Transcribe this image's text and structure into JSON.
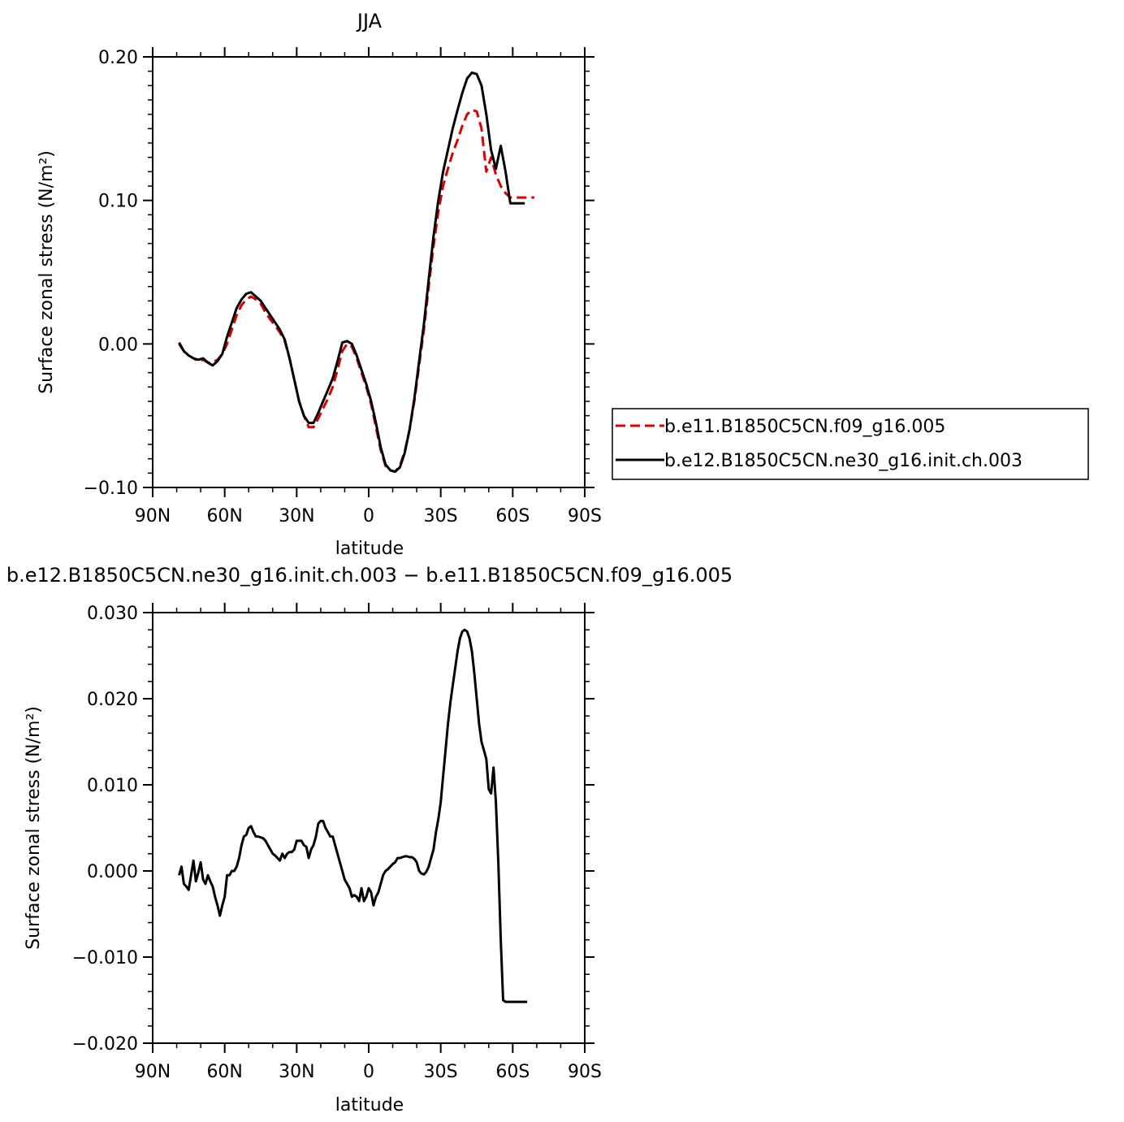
{
  "chart_data": [
    {
      "type": "line",
      "title": "JJA",
      "xlabel": "latitude",
      "ylabel": "Surface zonal stress (N/m²)",
      "xlim": [
        -90,
        90
      ],
      "ylim": [
        -0.1,
        0.2
      ],
      "x_ticks": [
        -90,
        -60,
        -30,
        0,
        30,
        60,
        90
      ],
      "x_tick_labels": [
        "90N",
        "60N",
        "30N",
        "0",
        "30S",
        "60S",
        "90S"
      ],
      "y_ticks": [
        -0.1,
        0.0,
        0.1,
        0.2
      ],
      "y_tick_labels": [
        "−0.10",
        "0.00",
        "0.10",
        "0.20"
      ],
      "legend_position": "right",
      "series": [
        {
          "name": "b.e11.B1850C5CN.f09_g16.005",
          "color": "#dd0000",
          "dash": "dashed",
          "x": [
            -79,
            -77,
            -75,
            -73,
            -71,
            -69,
            -67,
            -65,
            -63,
            -61,
            -59,
            -57,
            -55,
            -53,
            -51,
            -49,
            -47,
            -45,
            -43,
            -41,
            -39,
            -37,
            -35,
            -33,
            -31,
            -29,
            -27,
            -25,
            -23,
            -21,
            -19,
            -17,
            -15,
            -13,
            -11,
            -9,
            -7,
            -5,
            -3,
            -1,
            1,
            3,
            5,
            7,
            9,
            11,
            13,
            15,
            17,
            19,
            21,
            23,
            25,
            27,
            29,
            31,
            33,
            35,
            37,
            39,
            41,
            43,
            45,
            47,
            49,
            51,
            53,
            55,
            57,
            59,
            61,
            63,
            65,
            67,
            69
          ],
          "y": [
            0.0,
            -0.005,
            -0.008,
            -0.01,
            -0.012,
            -0.011,
            -0.013,
            -0.013,
            -0.011,
            -0.007,
            0.0,
            0.01,
            0.02,
            0.027,
            0.031,
            0.033,
            0.031,
            0.028,
            0.022,
            0.017,
            0.013,
            0.008,
            0.002,
            -0.01,
            -0.025,
            -0.04,
            -0.05,
            -0.058,
            -0.058,
            -0.052,
            -0.045,
            -0.038,
            -0.03,
            -0.018,
            -0.005,
            0.0,
            -0.002,
            -0.01,
            -0.02,
            -0.03,
            -0.042,
            -0.058,
            -0.074,
            -0.085,
            -0.088,
            -0.089,
            -0.085,
            -0.075,
            -0.06,
            -0.04,
            -0.015,
            0.01,
            0.04,
            0.068,
            0.092,
            0.11,
            0.122,
            0.133,
            0.142,
            0.152,
            0.16,
            0.163,
            0.162,
            0.15,
            0.12,
            0.13,
            0.118,
            0.11,
            0.105,
            0.102,
            0.102,
            0.102,
            0.102,
            0.102,
            0.102
          ]
        },
        {
          "name": "b.e12.B1850C5CN.ne30_g16.init.ch.003",
          "color": "#000000",
          "dash": "solid",
          "x": [
            -79,
            -77,
            -75,
            -73,
            -71,
            -69,
            -67,
            -65,
            -63,
            -61,
            -59,
            -57,
            -55,
            -53,
            -51,
            -49,
            -47,
            -45,
            -43,
            -41,
            -39,
            -37,
            -35,
            -33,
            -31,
            -29,
            -27,
            -25,
            -23,
            -21,
            -19,
            -17,
            -15,
            -13,
            -11,
            -9,
            -7,
            -5,
            -3,
            -1,
            1,
            3,
            5,
            7,
            9,
            11,
            13,
            15,
            17,
            19,
            21,
            23,
            25,
            27,
            29,
            31,
            33,
            35,
            37,
            39,
            41,
            43,
            45,
            47,
            49,
            51,
            53,
            55,
            57,
            59,
            61,
            63,
            65
          ],
          "y": [
            0.001,
            -0.005,
            -0.008,
            -0.01,
            -0.011,
            -0.01,
            -0.013,
            -0.015,
            -0.012,
            -0.007,
            0.005,
            0.015,
            0.025,
            0.031,
            0.035,
            0.036,
            0.033,
            0.03,
            0.025,
            0.02,
            0.015,
            0.01,
            0.003,
            -0.01,
            -0.025,
            -0.04,
            -0.05,
            -0.055,
            -0.055,
            -0.048,
            -0.04,
            -0.032,
            -0.024,
            -0.012,
            0.001,
            0.002,
            0.0,
            -0.008,
            -0.018,
            -0.028,
            -0.04,
            -0.055,
            -0.072,
            -0.084,
            -0.088,
            -0.089,
            -0.086,
            -0.076,
            -0.06,
            -0.038,
            -0.012,
            0.014,
            0.045,
            0.075,
            0.1,
            0.12,
            0.135,
            0.15,
            0.163,
            0.175,
            0.185,
            0.189,
            0.188,
            0.18,
            0.16,
            0.135,
            0.122,
            0.138,
            0.12,
            0.098,
            0.098,
            0.098,
            0.098
          ]
        }
      ]
    },
    {
      "type": "line",
      "title": "b.e12.B1850C5CN.ne30_g16.init.ch.003 − b.e11.B1850C5CN.f09_g16.005",
      "xlabel": "latitude",
      "ylabel": "Surface zonal stress (N/m²)",
      "xlim": [
        -90,
        90
      ],
      "ylim": [
        -0.02,
        0.03
      ],
      "x_ticks": [
        -90,
        -60,
        -30,
        0,
        30,
        60,
        90
      ],
      "x_tick_labels": [
        "90N",
        "60N",
        "30N",
        "0",
        "30S",
        "60S",
        "90S"
      ],
      "y_ticks": [
        -0.02,
        -0.01,
        0.0,
        0.01,
        0.02,
        0.03
      ],
      "y_tick_labels": [
        "−0.020",
        "−0.010",
        "0.000",
        "0.010",
        "0.020",
        "0.030"
      ],
      "series": [
        {
          "color": "#000000",
          "dash": "solid",
          "x": [
            -79,
            -78,
            -77,
            -76,
            -75,
            -74,
            -73,
            -72,
            -71,
            -70,
            -69,
            -68,
            -67,
            -66,
            -65,
            -64,
            -63,
            -62,
            -61,
            -60,
            -59,
            -58,
            -57,
            -56,
            -55,
            -54,
            -53,
            -52,
            -51,
            -50,
            -49,
            -48,
            -47,
            -46,
            -45,
            -44,
            -43,
            -42,
            -41,
            -40,
            -39,
            -38,
            -37,
            -36,
            -35,
            -34,
            -33,
            -32,
            -31,
            -30,
            -29,
            -28,
            -27,
            -26,
            -25,
            -24,
            -23,
            -22,
            -21,
            -20,
            -19,
            -18,
            -17,
            -16,
            -15,
            -14,
            -13,
            -12,
            -11,
            -10,
            -9,
            -8,
            -7,
            -6,
            -5,
            -4,
            -3,
            -2,
            -1,
            0,
            1,
            2,
            3,
            4,
            5,
            6,
            7,
            8,
            9,
            10,
            11,
            12,
            13,
            14,
            15,
            16,
            17,
            18,
            19,
            20,
            21,
            22,
            23,
            24,
            25,
            26,
            27,
            28,
            29,
            30,
            31,
            32,
            33,
            34,
            35,
            36,
            37,
            38,
            39,
            40,
            41,
            42,
            43,
            44,
            45,
            46,
            47,
            48,
            49,
            50,
            51,
            52,
            53,
            54,
            55,
            56,
            57,
            58,
            59,
            60,
            61,
            62,
            63,
            64,
            65,
            66
          ],
          "y": [
            -0.0005,
            0.0005,
            -0.0015,
            -0.0018,
            -0.0022,
            -0.0005,
            0.0012,
            -0.0012,
            -0.0002,
            0.001,
            -0.001,
            -0.0015,
            -0.0005,
            -0.0012,
            -0.0018,
            -0.003,
            -0.004,
            -0.0052,
            -0.004,
            -0.003,
            -0.0005,
            -0.0005,
            0.0,
            0.0,
            0.0005,
            0.0015,
            0.003,
            0.004,
            0.0042,
            0.005,
            0.0052,
            0.0045,
            0.004,
            0.004,
            0.0039,
            0.0038,
            0.0035,
            0.003,
            0.0025,
            0.002,
            0.0018,
            0.0015,
            0.0012,
            0.002,
            0.0015,
            0.002,
            0.0022,
            0.0022,
            0.0025,
            0.0035,
            0.0035,
            0.0035,
            0.003,
            0.0028,
            0.0015,
            0.0025,
            0.003,
            0.004,
            0.0055,
            0.0058,
            0.0058,
            0.005,
            0.0045,
            0.004,
            0.004,
            0.003,
            0.002,
            0.001,
            0.0,
            -0.001,
            -0.0015,
            -0.002,
            -0.003,
            -0.0028,
            -0.003,
            -0.0035,
            -0.002,
            -0.0035,
            -0.003,
            -0.002,
            -0.0025,
            -0.004,
            -0.003,
            -0.0025,
            -0.0015,
            -0.0005,
            0.0,
            0.0002,
            0.0005,
            0.0008,
            0.001,
            0.0015,
            0.0015,
            0.0016,
            0.0017,
            0.0017,
            0.0016,
            0.0016,
            0.0014,
            0.001,
            0.0,
            -0.0003,
            -0.0004,
            -0.0001,
            0.0005,
            0.0015,
            0.0025,
            0.0045,
            0.006,
            0.008,
            0.011,
            0.014,
            0.017,
            0.0195,
            0.0215,
            0.0235,
            0.0255,
            0.027,
            0.0278,
            0.028,
            0.0278,
            0.027,
            0.0255,
            0.023,
            0.02,
            0.017,
            0.015,
            0.014,
            0.013,
            0.0095,
            0.009,
            0.012,
            0.008,
            0.001,
            -0.008,
            -0.015,
            -0.0152,
            -0.0152,
            -0.0152,
            -0.0152,
            -0.0152,
            -0.0152,
            -0.0152,
            -0.0152,
            -0.0152,
            -0.0152
          ]
        }
      ]
    }
  ]
}
